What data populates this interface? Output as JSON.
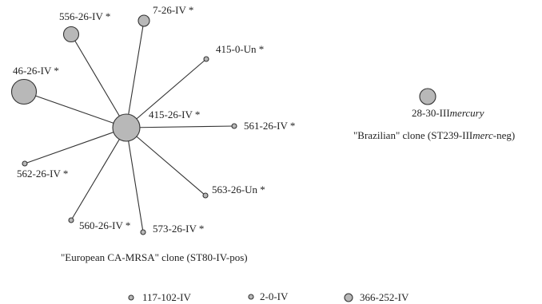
{
  "diagram": {
    "hub": {
      "label": "415-26-IV *"
    },
    "spokes": [
      {
        "id": "556",
        "label": "556-26-IV *"
      },
      {
        "id": "7",
        "label": "7-26-IV *"
      },
      {
        "id": "415-0",
        "label": "415-0-Un *"
      },
      {
        "id": "46",
        "label": "46-26-IV *"
      },
      {
        "id": "561",
        "label": "561-26-IV *"
      },
      {
        "id": "562",
        "label": "562-26-IV *"
      },
      {
        "id": "563",
        "label": "563-26-Un *"
      },
      {
        "id": "560",
        "label": "560-26-IV *"
      },
      {
        "id": "573",
        "label": "573-26-IV *"
      }
    ],
    "isolated": {
      "label_prefix": "28-30-III",
      "label_italic": "mercury"
    },
    "captions": {
      "european": "\"European CA-MRSA\" clone (ST80-IV-pos)",
      "brazilian_prefix": "\"Brazilian\" clone (ST239-III",
      "brazilian_italic": "merc",
      "brazilian_suffix": "-neg)"
    },
    "legend": [
      {
        "label": "117-102-IV"
      },
      {
        "label": "2-0-IV"
      },
      {
        "label": "366-252-IV"
      }
    ],
    "colors": {
      "node_fill": "#b8b8b8",
      "stroke": "#333333",
      "text": "#222222"
    }
  }
}
